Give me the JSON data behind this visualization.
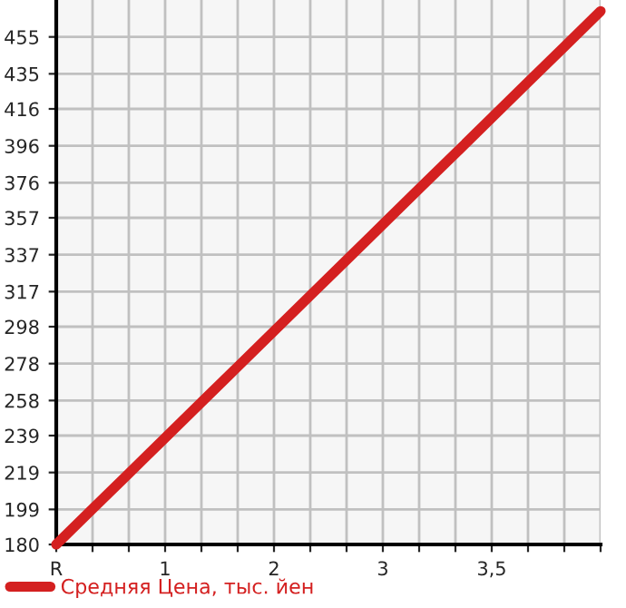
{
  "chart_data": {
    "type": "line",
    "categories": [
      "R",
      null,
      null,
      "1",
      null,
      null,
      "2",
      null,
      null,
      "3",
      null,
      null,
      "3,5",
      null,
      null,
      null
    ],
    "series": [
      {
        "name": "Средняя Цена, тыс. йен",
        "color": "#d42020",
        "values": [
          180,
          199.3,
          218.5,
          237.8,
          257.1,
          276.3,
          295.6,
          314.9,
          334.1,
          353.4,
          372.7,
          391.9,
          411.2,
          430.5,
          449.7,
          469
        ]
      }
    ],
    "ylim": [
      180,
      475
    ],
    "yticks": [
      180,
      199,
      219,
      239,
      258,
      278,
      298,
      317,
      337,
      357,
      376,
      396,
      416,
      435,
      455
    ],
    "grid": true,
    "legend": "bottom",
    "marker": "none",
    "line_style": "solid"
  }
}
